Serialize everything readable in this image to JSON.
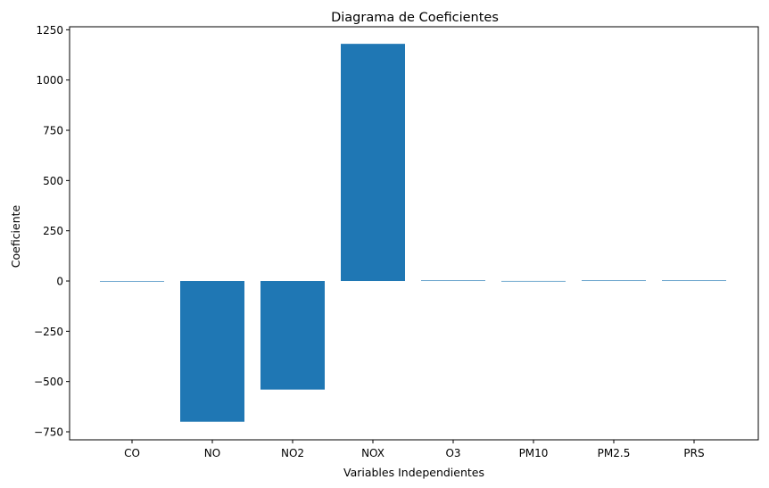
{
  "chart_data": {
    "type": "bar",
    "title": "Diagrama de Coeficientes",
    "xlabel": "Variables Independientes",
    "ylabel": "Coeficiente",
    "categories": [
      "CO",
      "NO",
      "NO2",
      "NOX",
      "O3",
      "PM10",
      "PM2.5",
      "PRS"
    ],
    "values": [
      -0.5,
      -700,
      -540,
      1180,
      3,
      0.3,
      3,
      3
    ],
    "ylim": [
      -790,
      1265
    ],
    "yticks": [
      -750,
      -500,
      -250,
      0,
      250,
      500,
      750,
      1000,
      1250
    ],
    "ytick_labels": [
      "−750",
      "−500",
      "−250",
      "0",
      "250",
      "500",
      "750",
      "1000",
      "1250"
    ],
    "bar_color": "#1f77b4",
    "grid": false,
    "legend": "none"
  }
}
